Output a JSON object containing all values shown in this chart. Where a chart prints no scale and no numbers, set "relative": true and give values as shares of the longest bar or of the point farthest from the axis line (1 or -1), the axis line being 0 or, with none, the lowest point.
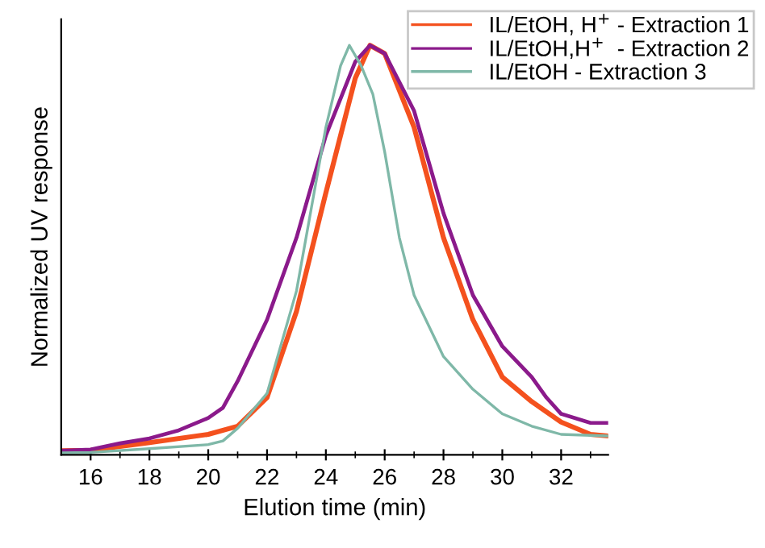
{
  "chart_data": {
    "type": "line",
    "xlabel": "Elution time (min)",
    "ylabel": "Normalized UV response",
    "relative": true,
    "xlim": [
      15,
      33.6
    ],
    "xticks": [
      16,
      18,
      20,
      22,
      24,
      26,
      28,
      30,
      32
    ],
    "legend": "top right",
    "grid": false,
    "marker": "none",
    "line_style": "solid",
    "series": [
      {
        "name": "IL/EtOH, H$^{+}$ - Extraction 1",
        "color": "#f4511e",
        "x": [
          15,
          16,
          18,
          20,
          21,
          22,
          23,
          24,
          25,
          25.5,
          26,
          27,
          28,
          29,
          30,
          30.5,
          31,
          32,
          33,
          33.6
        ],
        "values": [
          0.01,
          0.011,
          0.03,
          0.05,
          0.07,
          0.14,
          0.35,
          0.64,
          0.92,
          1.0,
          0.98,
          0.8,
          0.53,
          0.33,
          0.19,
          0.16,
          0.13,
          0.08,
          0.05,
          0.046
        ]
      },
      {
        "name": "IL/EtOH,H$^{+}$  - Extraction 2",
        "color": "#8b1a8b",
        "x": [
          15,
          16,
          17,
          18,
          19,
          20,
          20.5,
          21,
          22,
          23,
          24,
          25,
          25.5,
          26,
          27,
          28,
          29,
          30,
          31,
          31.5,
          32,
          33,
          33.6
        ],
        "values": [
          0.01,
          0.013,
          0.028,
          0.04,
          0.06,
          0.09,
          0.115,
          0.18,
          0.33,
          0.53,
          0.78,
          0.96,
          1.0,
          0.98,
          0.84,
          0.59,
          0.39,
          0.265,
          0.19,
          0.14,
          0.1,
          0.078,
          0.078
        ]
      },
      {
        "name": "IL/EtOH - Extraction 3",
        "color": "#7fb8a8",
        "x": [
          15,
          16,
          18,
          20,
          20.5,
          21,
          22,
          23,
          24,
          24.5,
          24.8,
          25.2,
          25.6,
          26,
          26.5,
          27,
          28,
          29,
          30,
          31,
          32,
          33.6
        ],
        "values": [
          0.005,
          0.006,
          0.015,
          0.025,
          0.034,
          0.065,
          0.15,
          0.4,
          0.8,
          0.95,
          1.0,
          0.95,
          0.88,
          0.74,
          0.53,
          0.39,
          0.24,
          0.16,
          0.1,
          0.07,
          0.05,
          0.046
        ]
      }
    ]
  }
}
